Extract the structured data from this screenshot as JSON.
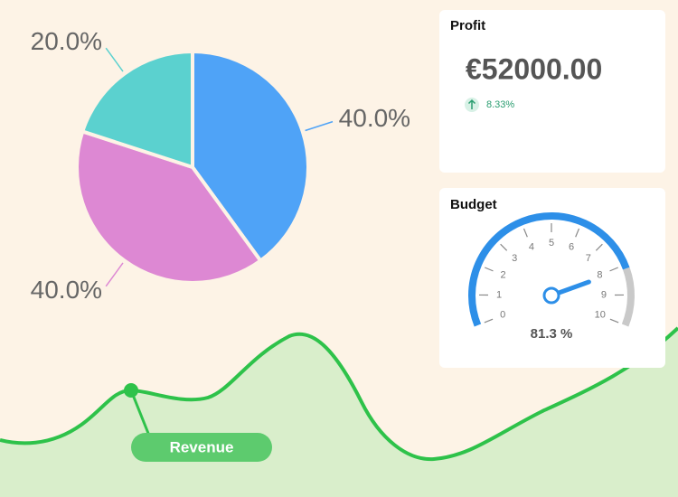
{
  "chart_data": [
    {
      "type": "pie",
      "values": [
        40,
        40,
        20
      ],
      "value_labels": [
        "40.0%",
        "40.0%",
        "20.0%"
      ],
      "colors": [
        "#4fa3f7",
        "#dd88d3",
        "#5bd1cf"
      ]
    },
    {
      "type": "gauge",
      "title": "Budget",
      "values": [
        8.13
      ],
      "value_labels": [
        "81.3 %"
      ],
      "ylim": [
        0,
        10
      ],
      "yticks": [
        0,
        1,
        2,
        3,
        4,
        5,
        6,
        7,
        8,
        9,
        10
      ],
      "color": "#2d8fe8",
      "track_color": "#c9c9c9"
    }
  ],
  "profit_card": {
    "title": "Profit",
    "value": "€52000.00",
    "change": "8.33%"
  },
  "revenue": {
    "label": "Revenue"
  }
}
